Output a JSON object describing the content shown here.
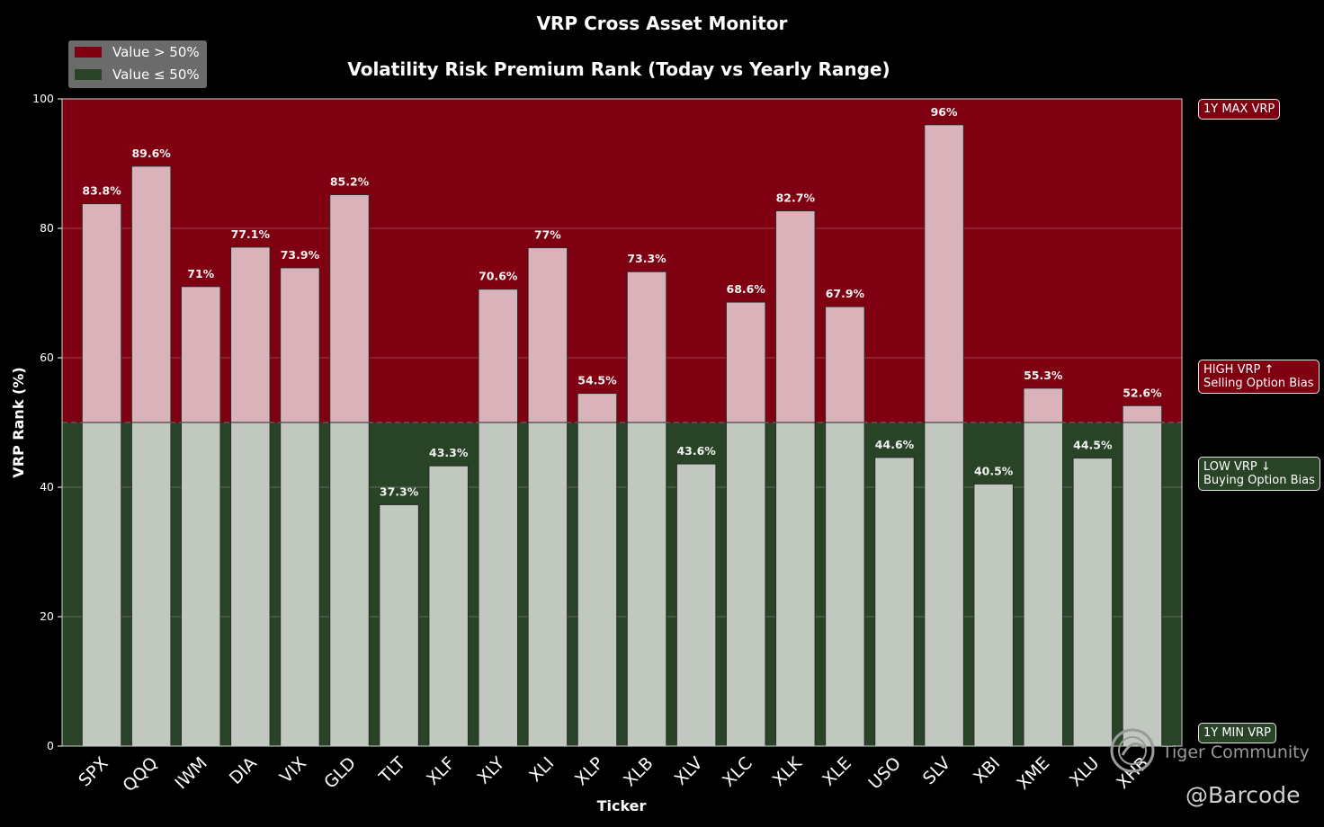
{
  "chart_data": {
    "type": "bar",
    "title": "VRP Cross Asset Monitor",
    "subtitle": "Volatility Risk Premium Rank (Today vs Yearly Range)",
    "xlabel": "Ticker",
    "ylabel": "VRP Rank (%)",
    "ylim": [
      0,
      100
    ],
    "yticks": [
      "0",
      "20",
      "40",
      "60",
      "80",
      "100"
    ],
    "threshold": 50,
    "grid": true,
    "categories": [
      "SPX",
      "QQQ",
      "IWM",
      "DIA",
      "VIX",
      "GLD",
      "TLT",
      "XLF",
      "XLY",
      "XLI",
      "XLP",
      "XLB",
      "XLV",
      "XLC",
      "XLK",
      "XLE",
      "USO",
      "SLV",
      "XBI",
      "XME",
      "XLU",
      "XHB"
    ],
    "values": [
      83.8,
      89.6,
      71,
      77.1,
      73.9,
      85.2,
      37.3,
      43.3,
      70.6,
      77,
      54.5,
      73.3,
      43.6,
      68.6,
      82.7,
      67.9,
      44.6,
      96,
      40.5,
      55.3,
      44.5,
      52.6
    ],
    "value_labels": [
      "83.8%",
      "89.6%",
      "71%",
      "77.1%",
      "73.9%",
      "85.2%",
      "37.3%",
      "43.3%",
      "70.6%",
      "77%",
      "54.5%",
      "73.3%",
      "43.6%",
      "68.6%",
      "82.7%",
      "67.9%",
      "44.6%",
      "96%",
      "40.5%",
      "55.3%",
      "44.5%",
      "52.6%"
    ],
    "legend": {
      "position": "top-left",
      "items": [
        {
          "label": "Value > 50%",
          "color": "#7f0010"
        },
        {
          "label": "Value ≤ 50%",
          "color": "#284326"
        }
      ]
    },
    "zones": {
      "high_color": "#7f0010",
      "low_color": "#284326",
      "bar_high_color": "#d9b3b9",
      "bar_low_color": "#c1c8c0"
    },
    "side_labels": {
      "max": "1Y MAX VRP",
      "high_line1": "HIGH VRP ↑",
      "high_line2": "Selling Option Bias",
      "low_line1": "LOW VRP ↓",
      "low_line2": "Buying Option Bias",
      "min": "1Y MIN VRP"
    }
  },
  "watermark": "Tiger Community",
  "handle": "@Barcode"
}
